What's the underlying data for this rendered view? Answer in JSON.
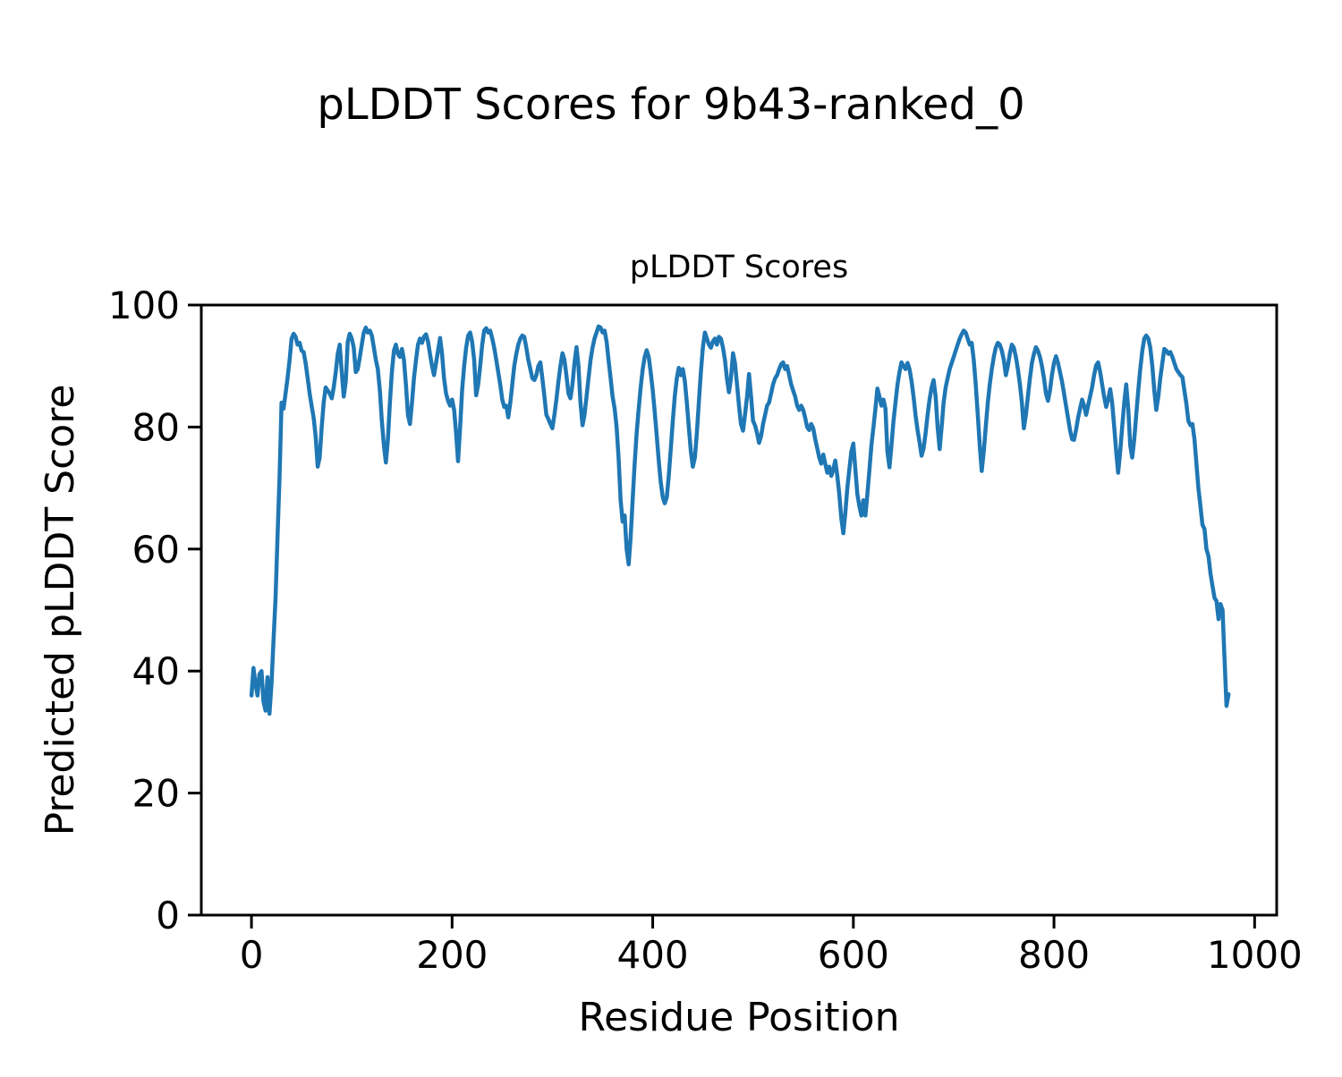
{
  "figure": {
    "suptitle": "pLDDT Scores for 9b43-ranked_0",
    "axes_title": "pLDDT Scores",
    "xlabel": "Residue Position",
    "ylabel": "Predicted pLDDT Score"
  },
  "chart_data": {
    "type": "line",
    "title": "pLDDT Scores",
    "suptitle": "pLDDT Scores for 9b43-ranked_0",
    "xlabel": "Residue Position",
    "ylabel": "Predicted pLDDT Score",
    "xlim": [
      -50,
      1022
    ],
    "ylim": [
      0,
      100
    ],
    "x_ticks": [
      0,
      200,
      400,
      600,
      800,
      1000
    ],
    "y_ticks": [
      0,
      20,
      40,
      60,
      80,
      100
    ],
    "grid": false,
    "legend_position": "none",
    "line_color": "#1f77b4",
    "line_width": 4.5,
    "axis_color": "#000000",
    "series": [
      {
        "name": "pLDDT",
        "x_start": 0,
        "x_step": 2,
        "y": [
          36,
          40.5,
          38,
          36,
          39.5,
          40,
          35,
          33.5,
          39,
          33,
          38,
          45,
          52,
          62,
          72,
          84,
          83,
          85.5,
          88,
          91,
          94.5,
          95.3,
          94.8,
          93.5,
          93.8,
          92.5,
          92.3,
          90.5,
          88,
          85.5,
          83.5,
          81.5,
          78.5,
          73.5,
          75,
          80,
          84,
          86.5,
          86,
          85.5,
          84.7,
          86.5,
          89,
          92,
          93.5,
          89,
          85,
          87.5,
          94,
          95.3,
          94.5,
          93,
          89,
          89.5,
          91.5,
          93.5,
          95.5,
          96.3,
          95.5,
          95.8,
          95,
          93,
          91,
          89.5,
          86,
          81,
          77,
          74.2,
          78,
          84,
          89,
          92.5,
          93.5,
          92,
          91.5,
          92.8,
          91,
          87,
          82,
          80.5,
          84,
          88,
          91,
          93.5,
          94.5,
          93.8,
          94.8,
          95.2,
          94,
          92,
          90,
          88.5,
          90.5,
          92.5,
          94.6,
          92,
          88,
          85.5,
          84.3,
          83.5,
          84.5,
          82.8,
          79,
          74.4,
          80,
          86,
          90,
          93,
          95,
          95.5,
          94,
          91,
          85.2,
          87,
          90,
          93.5,
          95.8,
          96.2,
          95.5,
          95.8,
          94.5,
          93,
          91,
          89,
          87,
          84.5,
          83.3,
          83.5,
          81.6,
          84,
          87,
          90,
          92,
          93.5,
          94.5,
          95,
          94.8,
          93,
          91,
          89.5,
          88,
          87.7,
          88.5,
          90,
          90.6,
          88,
          85,
          82,
          81.3,
          80.5,
          79.8,
          82,
          84.5,
          87.5,
          90,
          92.1,
          91,
          88.5,
          85.5,
          84.7,
          87,
          90.5,
          93.1,
          90,
          84,
          80.3,
          82,
          85,
          88,
          91,
          93,
          94.5,
          95.5,
          96.5,
          96.3,
          95.5,
          95.8,
          94,
          91,
          88,
          85,
          83,
          80,
          75,
          68,
          64.5,
          65.5,
          60,
          57.5,
          62,
          68,
          74,
          79,
          83,
          86.5,
          89.5,
          91.5,
          92.6,
          91.5,
          89,
          86,
          82.5,
          78.5,
          74.5,
          71,
          68.5,
          67.5,
          68.5,
          72,
          76.5,
          81,
          85,
          88,
          89.7,
          88.5,
          89.5,
          87.5,
          84,
          80,
          76,
          73.5,
          75,
          79,
          84,
          89,
          93,
          95.5,
          94.5,
          93.5,
          93,
          94,
          94.5,
          93.5,
          94.8,
          94.5,
          93,
          91,
          88,
          85.7,
          88,
          92.1,
          90.5,
          87,
          83.5,
          80.5,
          79.4,
          82,
          85,
          88.7,
          85,
          81,
          80.3,
          79,
          77.4,
          78.5,
          80.5,
          82,
          83.5,
          84,
          85.5,
          87,
          88,
          88.5,
          89.5,
          90.3,
          90.6,
          89.5,
          90,
          88.5,
          87,
          86,
          85,
          83.5,
          82.8,
          83.5,
          82.8,
          81.5,
          80,
          79.5,
          80.5,
          79.8,
          78,
          76.5,
          75,
          74,
          75.5,
          74,
          72.5,
          73.5,
          72,
          73,
          74.5,
          72,
          69,
          65,
          62.6,
          66,
          70,
          73,
          76,
          77.3,
          73,
          69,
          67,
          65.5,
          68,
          65.5,
          69,
          73,
          77,
          80,
          83,
          86.3,
          85,
          83.5,
          84.5,
          83,
          76,
          73.4,
          77,
          81,
          84,
          87,
          89,
          90.6,
          90,
          89.5,
          90.5,
          89.5,
          87.5,
          85,
          82,
          79.5,
          77.5,
          75.3,
          76.5,
          79,
          82,
          84.5,
          86.5,
          87.7,
          85,
          80,
          76.4,
          80,
          84,
          86.5,
          88,
          89.5,
          90.5,
          91.5,
          92.5,
          93.5,
          94.5,
          95.2,
          95.8,
          95.5,
          94.5,
          93.5,
          93.8,
          91,
          87,
          82,
          77,
          72.8,
          76,
          80,
          84,
          87,
          89.5,
          91.5,
          93,
          93.8,
          93.5,
          92.5,
          91,
          88.5,
          90,
          92,
          93.5,
          93,
          91.5,
          89.5,
          87,
          84,
          79.8,
          82,
          85,
          88,
          90.5,
          92,
          93.1,
          92.5,
          91.5,
          90,
          88,
          85.5,
          84.3,
          86,
          88.5,
          90.5,
          91.6,
          90.5,
          89,
          87.5,
          85.5,
          83.5,
          81.5,
          79.5,
          78,
          77.9,
          79.5,
          81.5,
          83,
          84.5,
          83.5,
          82,
          83.5,
          85,
          86.5,
          88.5,
          90.1,
          90.6,
          89,
          87,
          85,
          83.3,
          84.5,
          86.2,
          84,
          80,
          76,
          72.5,
          76,
          80,
          84,
          87,
          83,
          77,
          75,
          78,
          82,
          86,
          89.5,
          92.5,
          94.5,
          95,
          94.5,
          93,
          90,
          86,
          82.8,
          85,
          88,
          90.5,
          92.8,
          92.5,
          92,
          92.3,
          91.5,
          90.5,
          89.5,
          89,
          88.5,
          88.2,
          86,
          83.8,
          81,
          80.3,
          80.5,
          78,
          74,
          70,
          67,
          64,
          63.3,
          60,
          58.8,
          56,
          54,
          52,
          51.5,
          48.5,
          51,
          50,
          42,
          34.3,
          36.2
        ]
      }
    ]
  }
}
